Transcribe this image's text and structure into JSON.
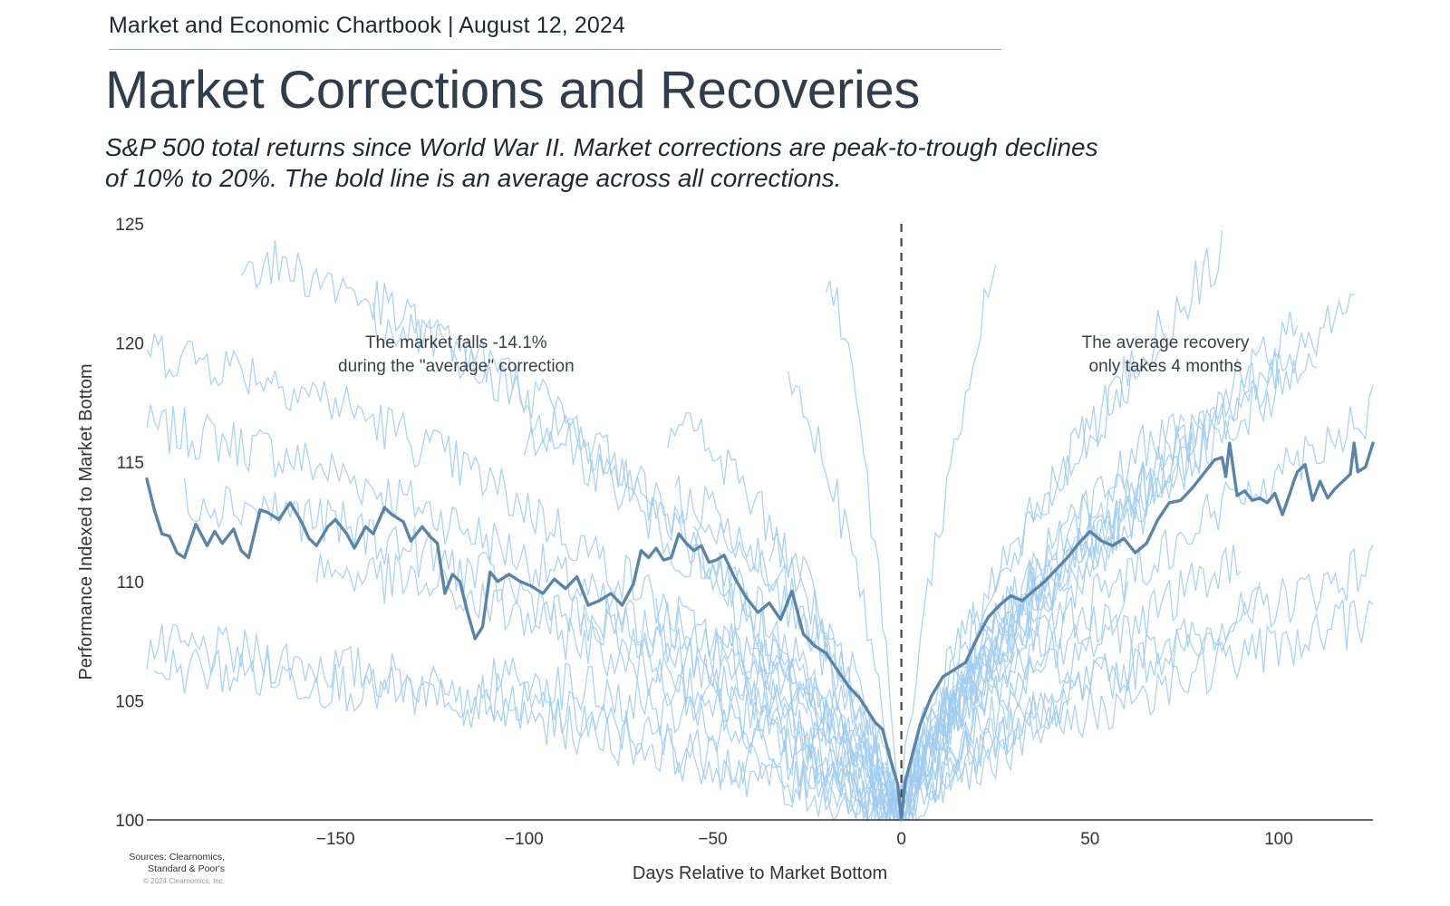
{
  "header": {
    "chartbook": "Market and Economic Chartbook | August 12, 2024"
  },
  "title": "Market Corrections and Recoveries",
  "subtitle": "S&P 500 total returns since World War II. Market corrections are peak-to-trough declines of 10% to 20%. The bold line is an average across all corrections.",
  "sources": {
    "line1": "Sources: Clearnomics,",
    "line2": "Standard & Poor's",
    "copyright": "© 2024 Clearnomics, Inc."
  },
  "colors": {
    "average_line": "#5a85a8",
    "individual_lines": "#9fcbef",
    "axis": "#333333",
    "marker_line": "#444444"
  },
  "chart_data": {
    "type": "line",
    "xlabel": "Days Relative to Market Bottom",
    "ylabel": "Performance Indexed to Market Bottom",
    "xlim": [
      -200,
      125
    ],
    "ylim": [
      100,
      125
    ],
    "x_ticks": [
      -150,
      -100,
      -50,
      0,
      50,
      100
    ],
    "x_tick_labels": [
      "−150",
      "−100",
      "−50",
      "0",
      "50",
      "100"
    ],
    "y_ticks": [
      100,
      105,
      110,
      115,
      120,
      125
    ],
    "y_tick_labels": [
      "100",
      "105",
      "110",
      "115",
      "120",
      "125"
    ],
    "vertical_marker_x": 0,
    "annotations": [
      {
        "text_lines": [
          "The market falls -14.1%",
          "during the \"average\" correction"
        ],
        "x": -118,
        "y": 119.8
      },
      {
        "text_lines": [
          "The average recovery",
          "only takes 4 months"
        ],
        "x": 70,
        "y": 119.8
      }
    ],
    "average_series": {
      "x": [
        -200,
        -198,
        -196,
        -194,
        -192,
        -190,
        -187,
        -184,
        -182,
        -180,
        -177,
        -175,
        -173,
        -170,
        -168,
        -165,
        -162,
        -159,
        -157,
        -155,
        -152,
        -150,
        -147,
        -145,
        -142,
        -140,
        -137,
        -135,
        -132,
        -130,
        -127,
        -125,
        -123,
        -121,
        -119,
        -117,
        -115,
        -113,
        -111,
        -109,
        -107,
        -104,
        -101,
        -98,
        -95,
        -92,
        -89,
        -86,
        -83,
        -80,
        -77,
        -74,
        -71,
        -69,
        -67,
        -65,
        -63,
        -61,
        -59,
        -57,
        -55,
        -53,
        -51,
        -49,
        -47,
        -44,
        -41,
        -38,
        -35,
        -32,
        -29,
        -26,
        -23,
        -20,
        -17,
        -14,
        -11,
        -9,
        -7,
        -5,
        -3,
        -1,
        0,
        1,
        3,
        5,
        8,
        11,
        14,
        17,
        20,
        23,
        26,
        29,
        32,
        35,
        38,
        41,
        44,
        47,
        50,
        53,
        56,
        59,
        62,
        65,
        68,
        71,
        74,
        77,
        80,
        83,
        85,
        86,
        87,
        89,
        91,
        93,
        95,
        97,
        99,
        101,
        103,
        104,
        105,
        107,
        109,
        111,
        113,
        115,
        117,
        119,
        120,
        121,
        123,
        125
      ],
      "y": [
        114.3,
        113.0,
        112.0,
        111.9,
        111.2,
        111.0,
        112.4,
        111.5,
        112.1,
        111.6,
        112.2,
        111.3,
        111.0,
        113.0,
        112.9,
        112.6,
        113.3,
        112.5,
        111.8,
        111.5,
        112.3,
        112.6,
        112.0,
        111.4,
        112.3,
        112.0,
        113.1,
        112.8,
        112.5,
        111.7,
        112.3,
        111.9,
        111.6,
        109.5,
        110.3,
        110.0,
        108.7,
        107.6,
        108.1,
        110.4,
        110.0,
        110.3,
        110.0,
        109.8,
        109.5,
        110.1,
        109.7,
        110.2,
        109.0,
        109.2,
        109.5,
        109.0,
        109.9,
        111.3,
        111.0,
        111.4,
        110.9,
        111.0,
        112.0,
        111.6,
        111.3,
        111.5,
        110.8,
        110.9,
        111.1,
        110.1,
        109.3,
        108.7,
        109.1,
        108.4,
        109.6,
        107.8,
        107.3,
        107.0,
        106.3,
        105.6,
        105.1,
        104.6,
        104.1,
        103.8,
        102.6,
        101.5,
        100.0,
        101.6,
        102.8,
        104.0,
        105.2,
        106.0,
        106.3,
        106.6,
        107.6,
        108.5,
        109.0,
        109.4,
        109.2,
        109.6,
        110.0,
        110.5,
        111.0,
        111.6,
        112.1,
        111.7,
        111.5,
        111.8,
        111.2,
        111.6,
        112.6,
        113.3,
        113.4,
        113.9,
        114.5,
        115.1,
        115.2,
        114.4,
        115.8,
        113.6,
        113.8,
        113.4,
        113.5,
        113.3,
        113.7,
        112.8,
        113.7,
        114.2,
        114.6,
        114.9,
        113.4,
        114.2,
        113.5,
        113.9,
        114.2,
        114.5,
        115.8,
        114.6,
        114.8,
        115.8
      ]
    }
  }
}
